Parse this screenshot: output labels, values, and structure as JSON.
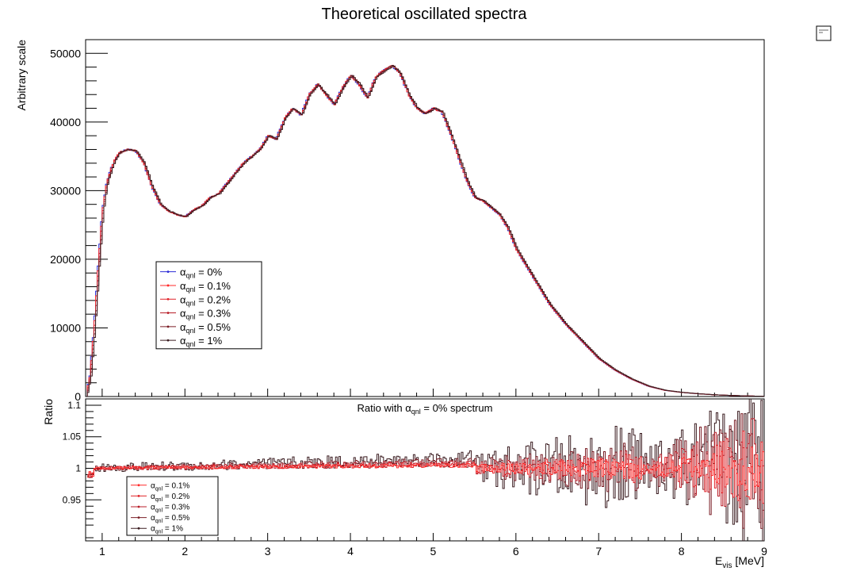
{
  "chart_data": [
    {
      "type": "line",
      "panel": "main",
      "title": "Theoretical oscillated spectra",
      "ylabel": "Arbitrary scale",
      "xlim": [
        0.8,
        9
      ],
      "ylim": [
        0,
        52000
      ],
      "yticks": [
        0,
        10000,
        20000,
        30000,
        40000,
        50000
      ],
      "ytick_labels": [
        "0",
        "10000",
        "20000",
        "30000",
        "40000",
        "50000"
      ],
      "legend": {
        "placement": "lower-left",
        "symbol": "α",
        "subscript": "qnl"
      },
      "series": [
        {
          "name_prefix": "α",
          "name_sub": "qnl",
          "name_suffix": " = 0%",
          "color": "#2b2bd6"
        },
        {
          "name_prefix": "α",
          "name_sub": "qnl",
          "name_suffix": " = 0.1%",
          "color": "#ff2a2a"
        },
        {
          "name_prefix": "α",
          "name_sub": "qnl",
          "name_suffix": " = 0.2%",
          "color": "#e0242a"
        },
        {
          "name_prefix": "α",
          "name_sub": "qnl",
          "name_suffix": " = 0.3%",
          "color": "#b81e28"
        },
        {
          "name_prefix": "α",
          "name_sub": "qnl",
          "name_suffix": " = 0.5%",
          "color": "#7a1e26"
        },
        {
          "name_prefix": "α",
          "name_sub": "qnl",
          "name_suffix": " = 1%",
          "color": "#3c1e22"
        }
      ],
      "x": [
        0.8,
        0.85,
        0.9,
        0.95,
        1.0,
        1.05,
        1.1,
        1.15,
        1.2,
        1.3,
        1.4,
        1.5,
        1.6,
        1.7,
        1.8,
        1.9,
        2.0,
        2.1,
        2.2,
        2.3,
        2.4,
        2.5,
        2.6,
        2.7,
        2.8,
        2.9,
        3.0,
        3.1,
        3.2,
        3.3,
        3.4,
        3.5,
        3.6,
        3.7,
        3.8,
        3.9,
        4.0,
        4.1,
        4.2,
        4.3,
        4.4,
        4.5,
        4.6,
        4.7,
        4.8,
        4.9,
        5.0,
        5.1,
        5.2,
        5.3,
        5.4,
        5.5,
        5.6,
        5.7,
        5.8,
        5.9,
        6.0,
        6.2,
        6.4,
        6.6,
        6.8,
        7.0,
        7.2,
        7.4,
        7.6,
        7.8,
        8.0,
        8.2,
        8.4,
        8.6,
        8.8,
        9.0
      ],
      "values": [
        0,
        3000,
        10000,
        19000,
        27000,
        31000,
        33000,
        34500,
        35500,
        36000,
        35800,
        34000,
        30500,
        28000,
        27000,
        26500,
        26200,
        27200,
        27800,
        29000,
        29500,
        31000,
        32500,
        34000,
        35000,
        36000,
        38000,
        37500,
        40500,
        42000,
        41000,
        44000,
        45500,
        44000,
        42500,
        45000,
        46800,
        45500,
        43500,
        46500,
        47500,
        48200,
        47000,
        44000,
        42000,
        41200,
        42000,
        41500,
        38500,
        35000,
        31500,
        29000,
        28500,
        27500,
        26500,
        24500,
        21500,
        17500,
        13500,
        10500,
        8000,
        5500,
        3800,
        2500,
        1500,
        900,
        600,
        400,
        250,
        150,
        80,
        30
      ]
    },
    {
      "type": "line",
      "panel": "ratio",
      "title": "Ratio with α_qnl = 0% spectrum",
      "annotation_prefix": "Ratio with α",
      "annotation_sub": "qnl",
      "annotation_suffix": " = 0% spectrum",
      "ylabel": "Ratio",
      "xlabel_main": "E",
      "xlabel_sub": "vis",
      "xlabel_unit": " [MeV]",
      "xlim": [
        0.8,
        9
      ],
      "ylim": [
        0.885,
        1.11
      ],
      "xticks": [
        1,
        2,
        3,
        4,
        5,
        6,
        7,
        8,
        9
      ],
      "xtick_labels": [
        "1",
        "2",
        "3",
        "4",
        "5",
        "6",
        "7",
        "8",
        "9"
      ],
      "yticks": [
        0.95,
        1,
        1.05,
        1.1
      ],
      "ytick_labels": [
        "0.95",
        "1",
        "1.05",
        "1.1"
      ],
      "legend": {
        "placement": "lower-left"
      },
      "series": [
        {
          "name_prefix": "α",
          "name_sub": "qnl",
          "name_suffix": " = 0.1%",
          "color": "#ff2a2a",
          "noise_amp": [
            0.0015,
            0.006,
            0.04
          ]
        },
        {
          "name_prefix": "α",
          "name_sub": "qnl",
          "name_suffix": " = 0.2%",
          "color": "#e0242a",
          "noise_amp": [
            0.002,
            0.008,
            0.07
          ]
        },
        {
          "name_prefix": "α",
          "name_sub": "qnl",
          "name_suffix": " = 0.3%",
          "color": "#b81e28",
          "noise_amp": [
            0.0025,
            0.01,
            0.09
          ]
        },
        {
          "name_prefix": "α",
          "name_sub": "qnl",
          "name_suffix": " = 0.5%",
          "color": "#7a1e26",
          "noise_amp": [
            0.003,
            0.015,
            0.12
          ]
        },
        {
          "name_prefix": "α",
          "name_sub": "qnl",
          "name_suffix": " = 1%",
          "color": "#3c1e22",
          "noise_amp": [
            0.005,
            0.025,
            0.15
          ]
        }
      ]
    }
  ]
}
